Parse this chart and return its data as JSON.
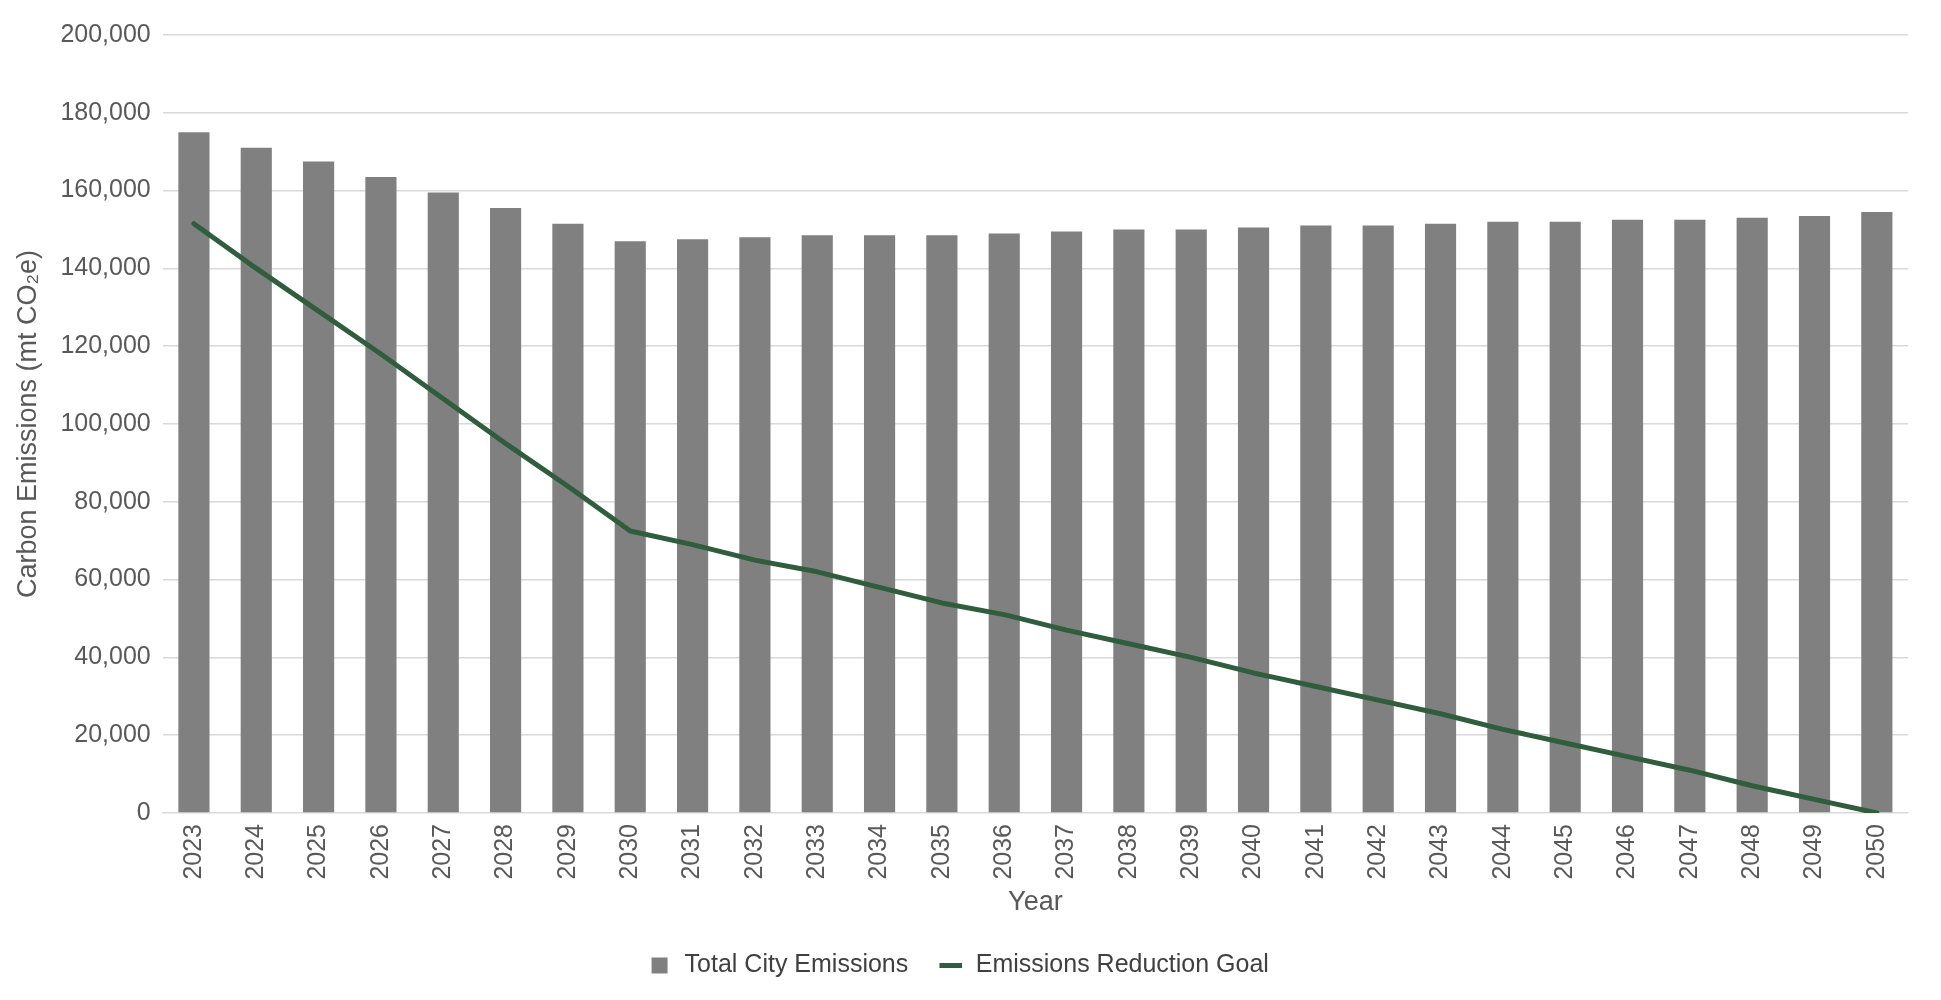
{
  "chart_data": {
    "type": "bar",
    "xlabel": "Year",
    "ylabel": "Carbon Emissions (mt CO₂e)",
    "categories": [
      "2023",
      "2024",
      "2025",
      "2026",
      "2027",
      "2028",
      "2029",
      "2030",
      "2031",
      "2032",
      "2033",
      "2034",
      "2035",
      "2036",
      "2037",
      "2038",
      "2039",
      "2040",
      "2041",
      "2042",
      "2043",
      "2044",
      "2045",
      "2046",
      "2047",
      "2048",
      "2049",
      "2050"
    ],
    "series": [
      {
        "name": "Total City Emissions",
        "color": "#808080",
        "values": [
          175000,
          171000,
          167500,
          163500,
          159500,
          155500,
          151500,
          147000,
          147500,
          148000,
          148500,
          148500,
          148500,
          149000,
          149500,
          150000,
          150000,
          150500,
          151000,
          151000,
          151500,
          152000,
          152000,
          152500,
          152500,
          153000,
          153500,
          154500
        ]
      },
      {
        "name": "Emissions Reduction Goal",
        "type": "line",
        "color": "#2f5d3e",
        "values": [
          151500,
          140000,
          129000,
          118000,
          106500,
          95000,
          84000,
          72500,
          69000,
          65000,
          62000,
          58000,
          54000,
          51000,
          47000,
          43500,
          40000,
          36000,
          32500,
          29000,
          25500,
          21500,
          18000,
          14500,
          11000,
          7000,
          3500,
          0
        ]
      }
    ],
    "ylim": [
      0,
      200000
    ],
    "yticks": [
      {
        "value": 0,
        "label": "0"
      },
      {
        "value": 20000,
        "label": "20,000"
      },
      {
        "value": 40000,
        "label": "40,000"
      },
      {
        "value": 60000,
        "label": "60,000"
      },
      {
        "value": 80000,
        "label": "80,000"
      },
      {
        "value": 100000,
        "label": "100,000"
      },
      {
        "value": 120000,
        "label": "120,000"
      },
      {
        "value": 140000,
        "label": "140,000"
      },
      {
        "value": 160000,
        "label": "160,000"
      },
      {
        "value": 180000,
        "label": "180,000"
      },
      {
        "value": 200000,
        "label": "200,000"
      }
    ],
    "grid": "y",
    "legend": "bottom",
    "marker": "none"
  }
}
